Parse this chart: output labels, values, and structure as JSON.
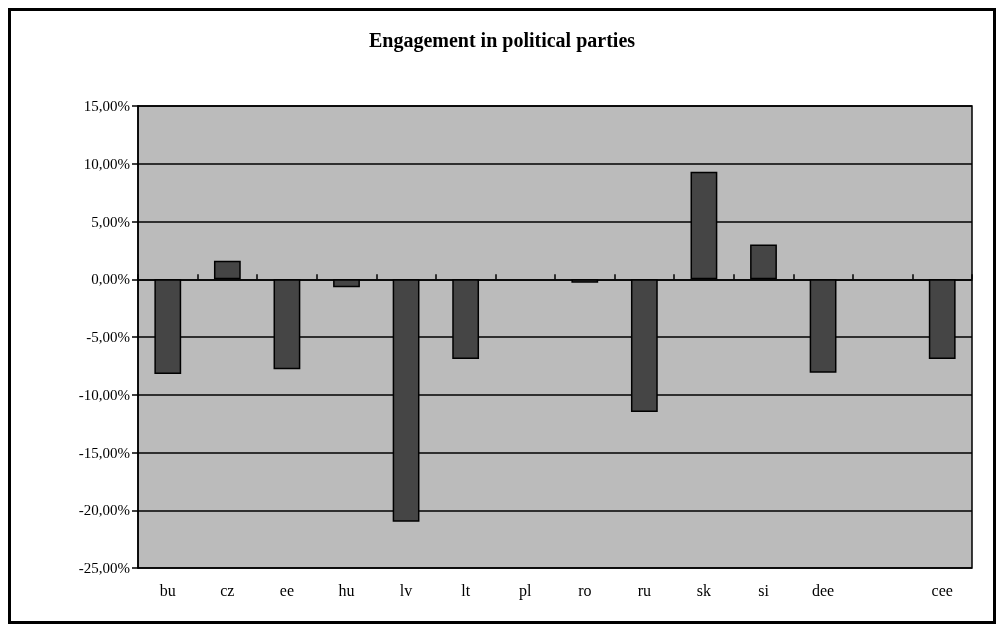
{
  "chart_data": {
    "type": "bar",
    "title": "Engagement in political parties",
    "categories": [
      "bu",
      "cz",
      "ee",
      "hu",
      "lv",
      "lt",
      "pl",
      "ro",
      "ru",
      "sk",
      "si",
      "dee",
      null,
      "cee"
    ],
    "values": [
      -8.2,
      1.6,
      -7.8,
      -0.7,
      -21.0,
      -6.9,
      null,
      -0.3,
      -11.5,
      9.3,
      3.0,
      -8.1,
      null,
      -6.9
    ],
    "color": "#454545",
    "ylim": [
      -25,
      15
    ],
    "yticks": [
      {
        "value": -25,
        "label": "-25,00%"
      },
      {
        "value": -20,
        "label": "-20,00%"
      },
      {
        "value": -15,
        "label": "-15,00%"
      },
      {
        "value": -10,
        "label": "-10,00%"
      },
      {
        "value": -5,
        "label": "-5,00%"
      },
      {
        "value": 0,
        "label": "0,00%"
      },
      {
        "value": 5,
        "label": "5,00%"
      },
      {
        "value": 10,
        "label": "10,00%"
      },
      {
        "value": 15,
        "label": "15,00%"
      }
    ],
    "grid": "y"
  }
}
